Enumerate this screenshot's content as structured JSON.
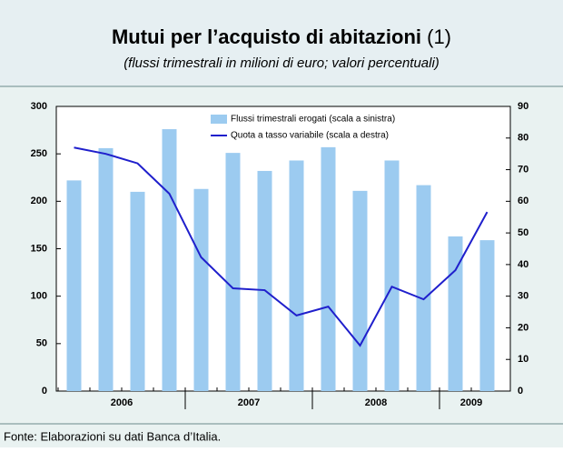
{
  "chart_data": {
    "type": "bar_line",
    "title": "Mutui per l’acquisto di abitazioni",
    "title_note": "(1)",
    "subtitle": "(flussi trimestrali in milioni di euro; valori percentuali)",
    "categories": [
      null,
      null,
      null,
      null,
      null,
      null,
      null,
      null,
      null,
      null,
      null,
      null,
      null,
      null
    ],
    "year_labels": [
      "2006",
      "2007",
      "2008",
      "2009"
    ],
    "series": [
      {
        "name": "Flussi trimestrali erogati (scala a sinistra)",
        "color": "#9ccbf0",
        "values": [
          222,
          256,
          210,
          276,
          213,
          251,
          232,
          243,
          257,
          211,
          243,
          217,
          163,
          159
        ]
      },
      {
        "name": "Quota a tasso variabile (scala a destra)",
        "color": "#1f1fcc",
        "axis": "y2",
        "values": [
          77,
          75,
          72,
          62.4,
          42.3,
          32.5,
          31.9,
          23.9,
          26.7,
          14.4,
          33,
          29,
          38.2,
          56.6
        ]
      }
    ],
    "ylim": [
      0,
      300
    ],
    "yticks": [
      0,
      50,
      100,
      150,
      200,
      250,
      300
    ],
    "y2lim": [
      0,
      90
    ],
    "y2ticks": [
      0,
      10,
      20,
      30,
      40,
      50,
      60,
      70,
      80,
      90
    ],
    "source": "Fonte: Elaborazioni su dati Banca d’Italia."
  }
}
